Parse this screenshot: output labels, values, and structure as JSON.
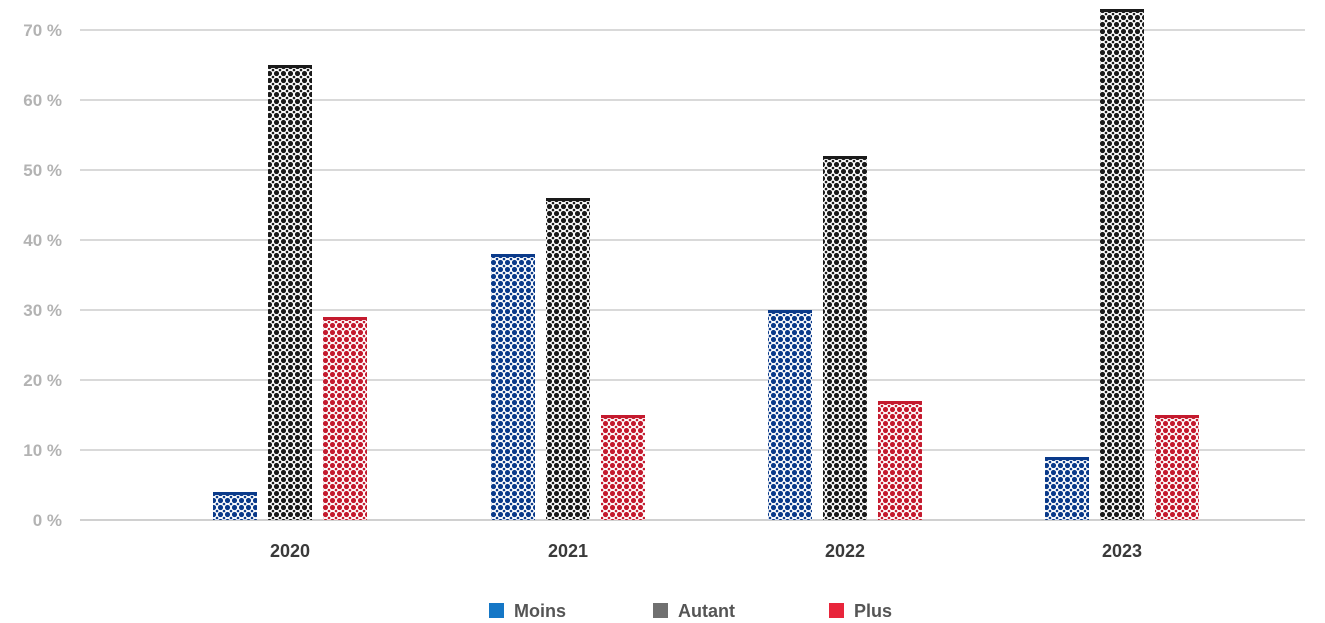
{
  "chart_data": {
    "type": "bar",
    "categories": [
      "2020",
      "2021",
      "2022",
      "2023"
    ],
    "series": [
      {
        "name": "Moins",
        "values": [
          4,
          38,
          30,
          9
        ],
        "color": "#1577c6",
        "dark": "#0a3a8a"
      },
      {
        "name": "Autant",
        "values": [
          65,
          46,
          52,
          73
        ],
        "color": "#707070",
        "dark": "#1a1a1a"
      },
      {
        "name": "Plus",
        "values": [
          29,
          15,
          17,
          15
        ],
        "color": "#e8253b",
        "dark": "#c41a2e"
      }
    ],
    "yticks": [
      "0 %",
      "10 %",
      "20 %",
      "30 %",
      "40 %",
      "50 %",
      "60 %",
      "70 %"
    ],
    "ylim": [
      0,
      73
    ],
    "grid": true,
    "legend_position": "bottom-center"
  }
}
